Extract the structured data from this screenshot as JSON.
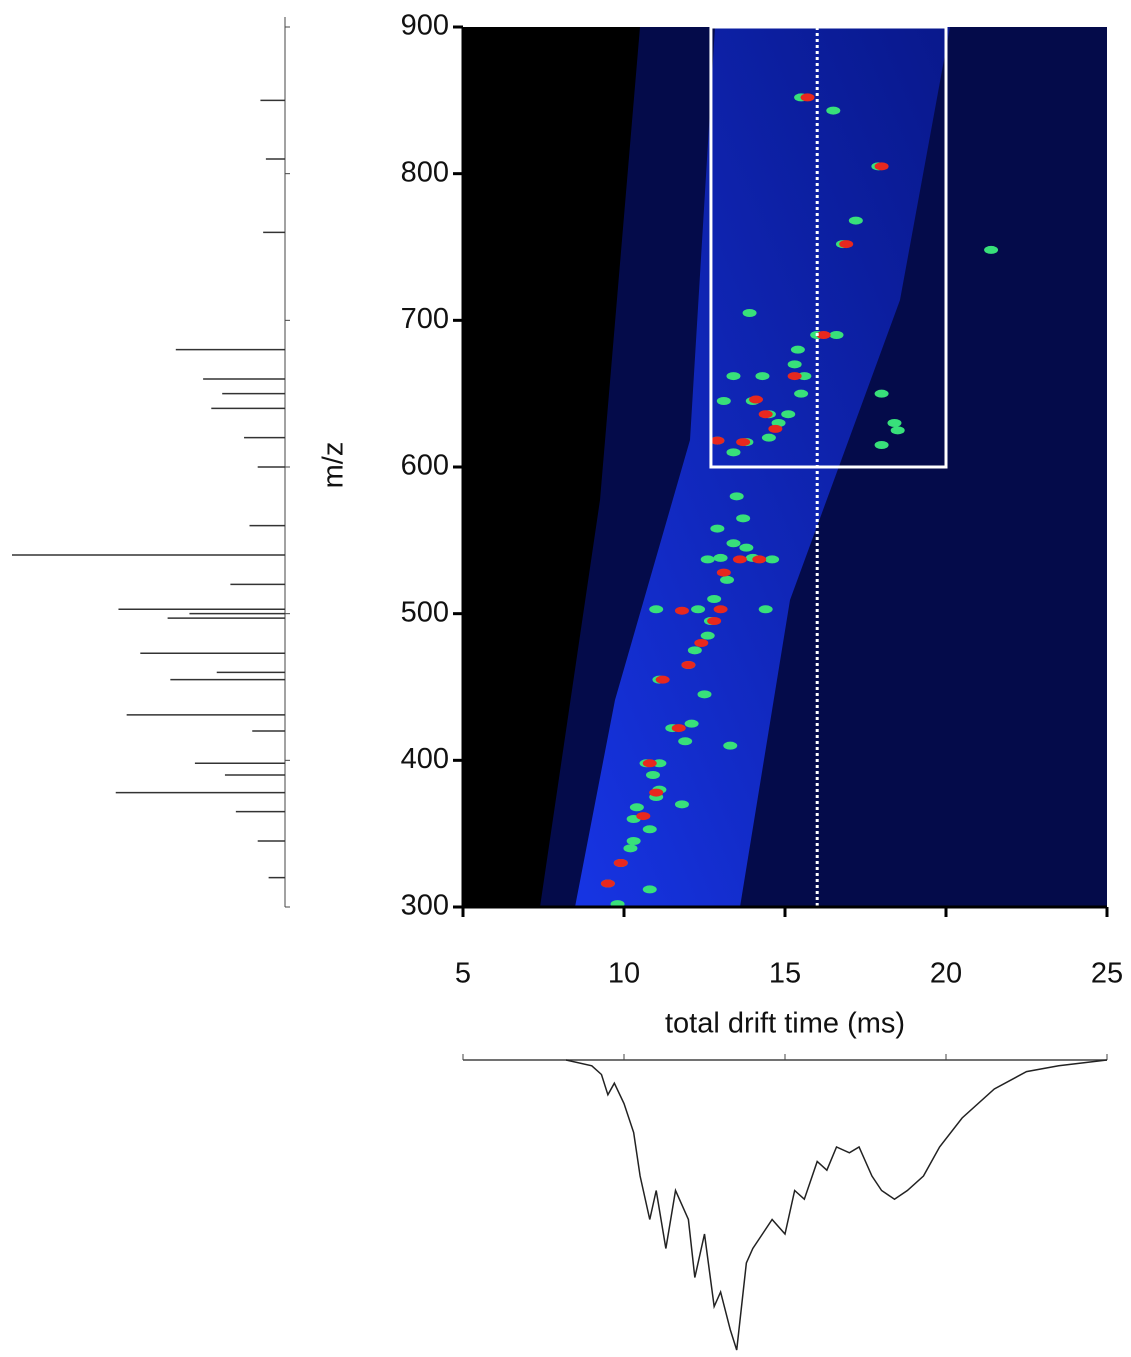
{
  "chart_data": {
    "type": "heatmap-scatter",
    "xlabel": "total drift time (ms)",
    "ylabel": "m/z",
    "xlim": [
      5,
      25
    ],
    "xticks": [
      5,
      10,
      15,
      20,
      25
    ],
    "ylim": [
      300,
      900
    ],
    "yticks": [
      300,
      400,
      500,
      600,
      700,
      800,
      900
    ],
    "box": {
      "x": [
        12.7,
        20
      ],
      "y": [
        600,
        900
      ]
    },
    "marker_x": 16,
    "series": [
      {
        "color": "#38e07a",
        "x": [
          15.5,
          16.5,
          17.9,
          17.2,
          16.8,
          21.4,
          13.9,
          16.0,
          16.6,
          15.4,
          15.3,
          15.6,
          13.4,
          14.3,
          15.5,
          18.0,
          13.1,
          14.0,
          15.1,
          14.5,
          14.8,
          18.4,
          18.5,
          14.5,
          12.9,
          13.8,
          18.0,
          13.4,
          13.5,
          13.7,
          13.4,
          12.9,
          13.8,
          14.0,
          13.0,
          12.6,
          14.6,
          13.2,
          12.8,
          12.3,
          11.0,
          14.4,
          12.7,
          12.6,
          12.2,
          12.0,
          11.1,
          12.5,
          11.5,
          12.1,
          11.9,
          13.3,
          10.7,
          11.1,
          10.9,
          11.1,
          11.0,
          11.8,
          10.4,
          10.3,
          10.8,
          10.3,
          10.2,
          9.9,
          9.5,
          10.8,
          9.8
        ],
        "y": [
          852,
          843,
          805,
          768,
          752,
          748,
          705,
          690,
          690,
          680,
          670,
          662,
          662,
          662,
          650,
          650,
          645,
          645,
          636,
          636,
          630,
          630,
          625,
          620,
          618,
          617,
          615,
          610,
          580,
          565,
          548,
          558,
          545,
          538,
          538,
          537,
          537,
          523,
          510,
          503,
          503,
          503,
          495,
          485,
          475,
          465,
          455,
          445,
          422,
          425,
          413,
          410,
          398,
          398,
          390,
          380,
          375,
          370,
          368,
          360,
          353,
          345,
          340,
          330,
          316,
          312,
          302
        ]
      },
      {
        "color": "#e8281e",
        "x": [
          15.7,
          18.0,
          16.9,
          16.2,
          15.3,
          14.1,
          14.4,
          14.7,
          12.9,
          13.7,
          13.6,
          14.2,
          13.1,
          13.0,
          11.8,
          12.8,
          12.4,
          12.0,
          11.2,
          11.7,
          10.8,
          11.0,
          10.6,
          9.9,
          9.5
        ],
        "y": [
          852,
          805,
          752,
          690,
          662,
          646,
          636,
          626,
          618,
          617,
          537,
          537,
          528,
          503,
          502,
          495,
          480,
          465,
          455,
          422,
          398,
          378,
          362,
          330,
          316
        ]
      }
    ],
    "mz_spectrum": {
      "x": [
        320,
        345,
        365,
        378,
        390,
        398,
        420,
        431,
        455,
        460,
        473,
        497,
        500,
        503,
        520,
        540,
        560,
        600,
        620,
        640,
        650,
        660,
        680,
        760,
        810,
        850
      ],
      "values": [
        6,
        10,
        18,
        62,
        22,
        33,
        12,
        58,
        42,
        25,
        53,
        43,
        35,
        61,
        20,
        100,
        13,
        10,
        15,
        27,
        23,
        30,
        40,
        8,
        7,
        9
      ]
    },
    "drift_profile": {
      "x": [
        8.2,
        9.0,
        9.3,
        9.5,
        9.7,
        10.0,
        10.3,
        10.5,
        10.8,
        11.0,
        11.3,
        11.6,
        12.0,
        12.2,
        12.5,
        12.8,
        13.0,
        13.3,
        13.5,
        13.8,
        14.0,
        14.3,
        14.6,
        15.0,
        15.3,
        15.6,
        16.0,
        16.3,
        16.6,
        17.0,
        17.3,
        17.7,
        18.0,
        18.4,
        18.8,
        19.3,
        19.8,
        20.5,
        21.5,
        22.5,
        23.5,
        25
      ],
      "values": [
        0,
        2,
        5,
        12,
        8,
        15,
        25,
        40,
        55,
        45,
        65,
        45,
        55,
        75,
        60,
        85,
        80,
        93,
        100,
        70,
        65,
        60,
        55,
        60,
        45,
        48,
        35,
        38,
        30,
        32,
        30,
        40,
        45,
        48,
        45,
        40,
        30,
        20,
        10,
        4,
        2,
        0
      ]
    }
  }
}
